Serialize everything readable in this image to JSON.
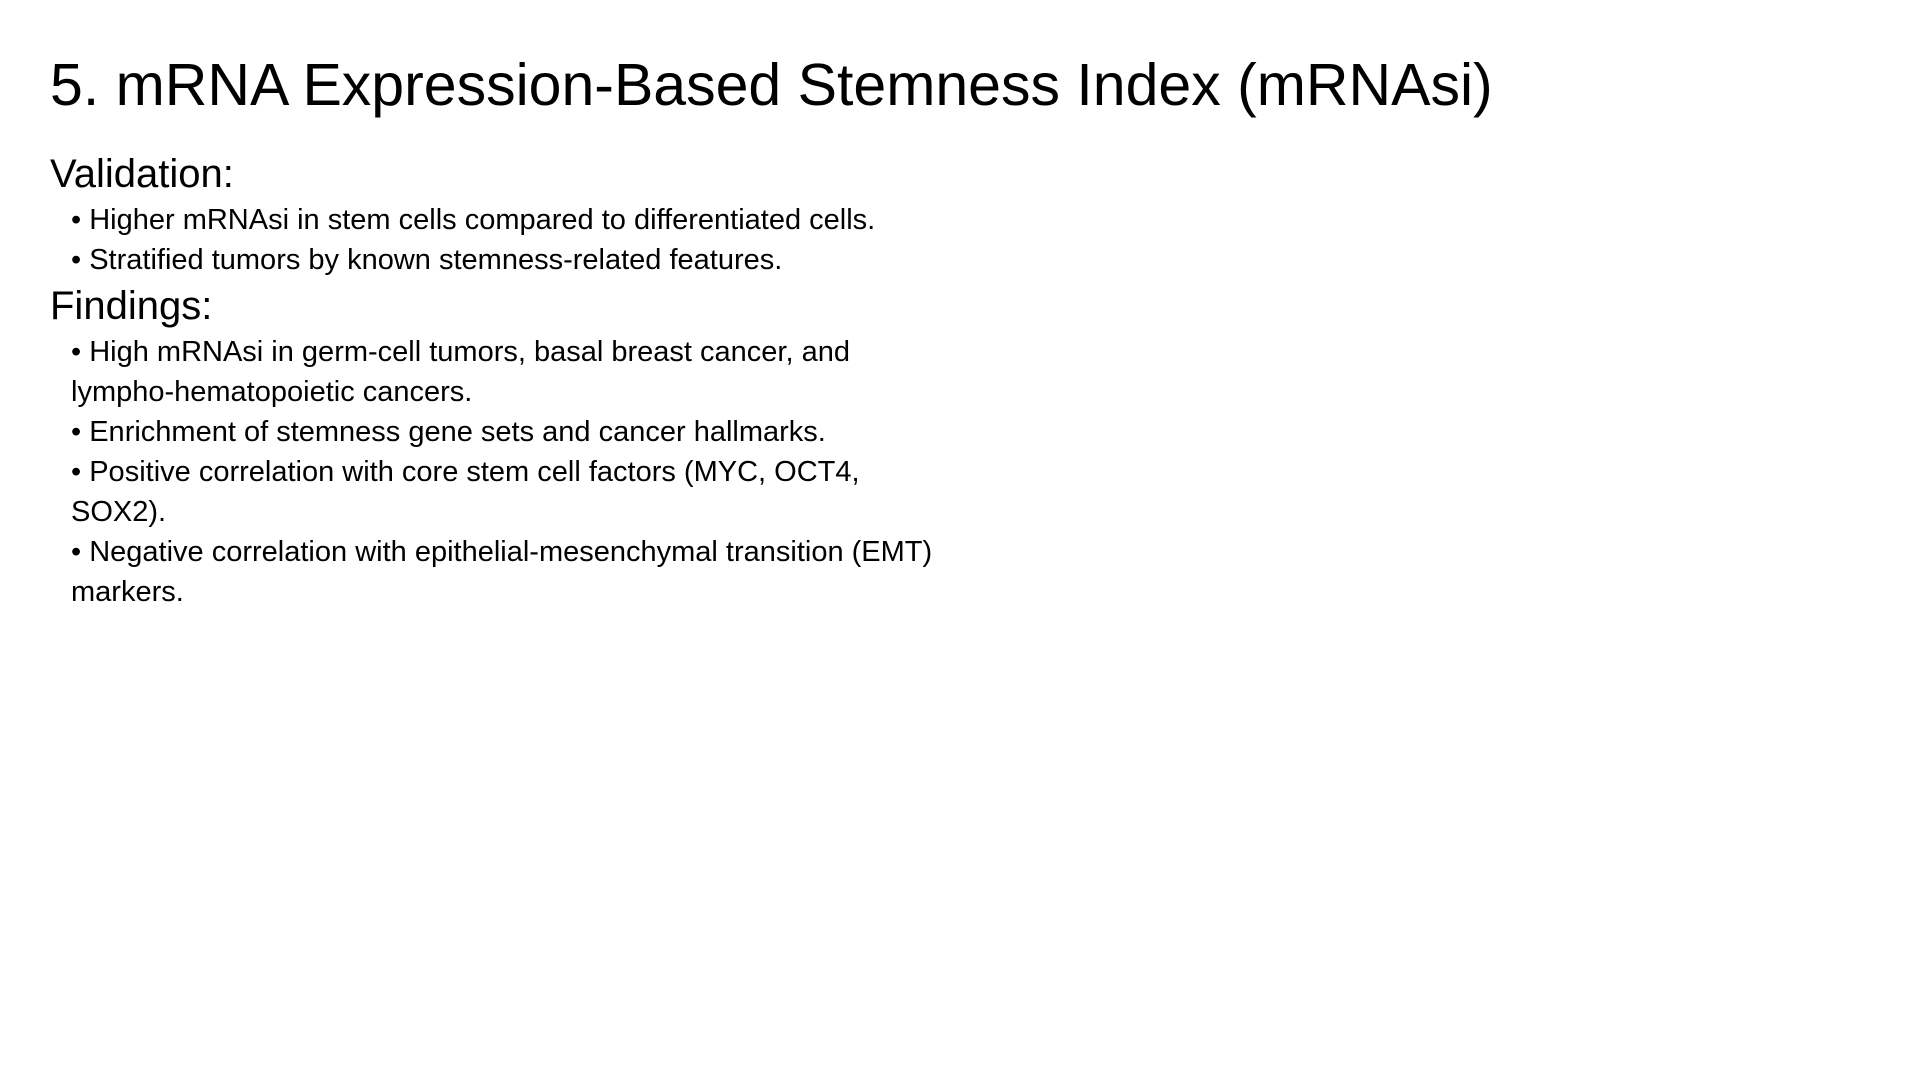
{
  "slide": {
    "title": "5. mRNA Expression-Based Stemness Index (mRNAsi)",
    "bullet_glyph": "• ",
    "sections": [
      {
        "heading": "Validation:",
        "bullets": [
          "Higher mRNAsi in stem cells compared to differentiated cells.",
          "Stratified tumors by known stemness-related features."
        ]
      },
      {
        "heading": "Findings:",
        "bullets": [
          "High mRNAsi in germ-cell tumors, basal breast cancer, and lympho-hematopoietic cancers.",
          "Enrichment of stemness gene sets and cancer hallmarks.",
          "Positive correlation with core stem cell factors (MYC, OCT4, SOX2).",
          "Negative correlation with epithelial-mesenchymal transition (EMT) markers."
        ]
      }
    ]
  }
}
